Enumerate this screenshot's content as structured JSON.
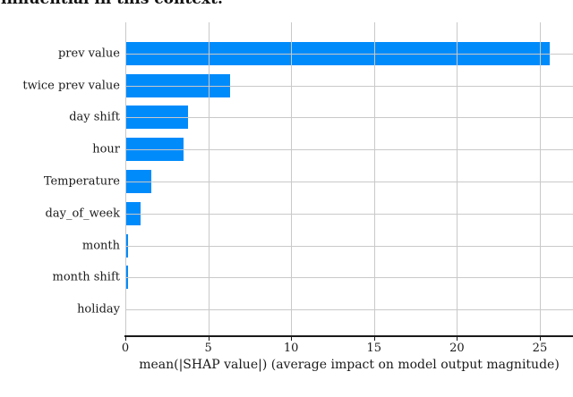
{
  "page": {
    "heading": "influential in this context."
  },
  "chart_data": {
    "type": "bar",
    "orientation": "horizontal",
    "title": "",
    "categories": [
      "prev value",
      "twice prev value",
      "day shift",
      "hour",
      "Temperature",
      "day_of_week",
      "month",
      "month shift",
      "holiday"
    ],
    "values": [
      25.6,
      6.3,
      3.8,
      3.5,
      1.55,
      0.9,
      0.15,
      0.15,
      0.0
    ],
    "xlabel": "mean(|SHAP value|) (average impact on model output magnitude)",
    "xticks": [
      0,
      5,
      10,
      15,
      20,
      25
    ],
    "xlim": [
      0,
      27
    ],
    "grid": true,
    "legend": false,
    "bar_color": "#008bfb",
    "grid_color": "#c9c9c9",
    "axis_color": "#1a1a1a",
    "text_color": "#1a1a1a"
  }
}
